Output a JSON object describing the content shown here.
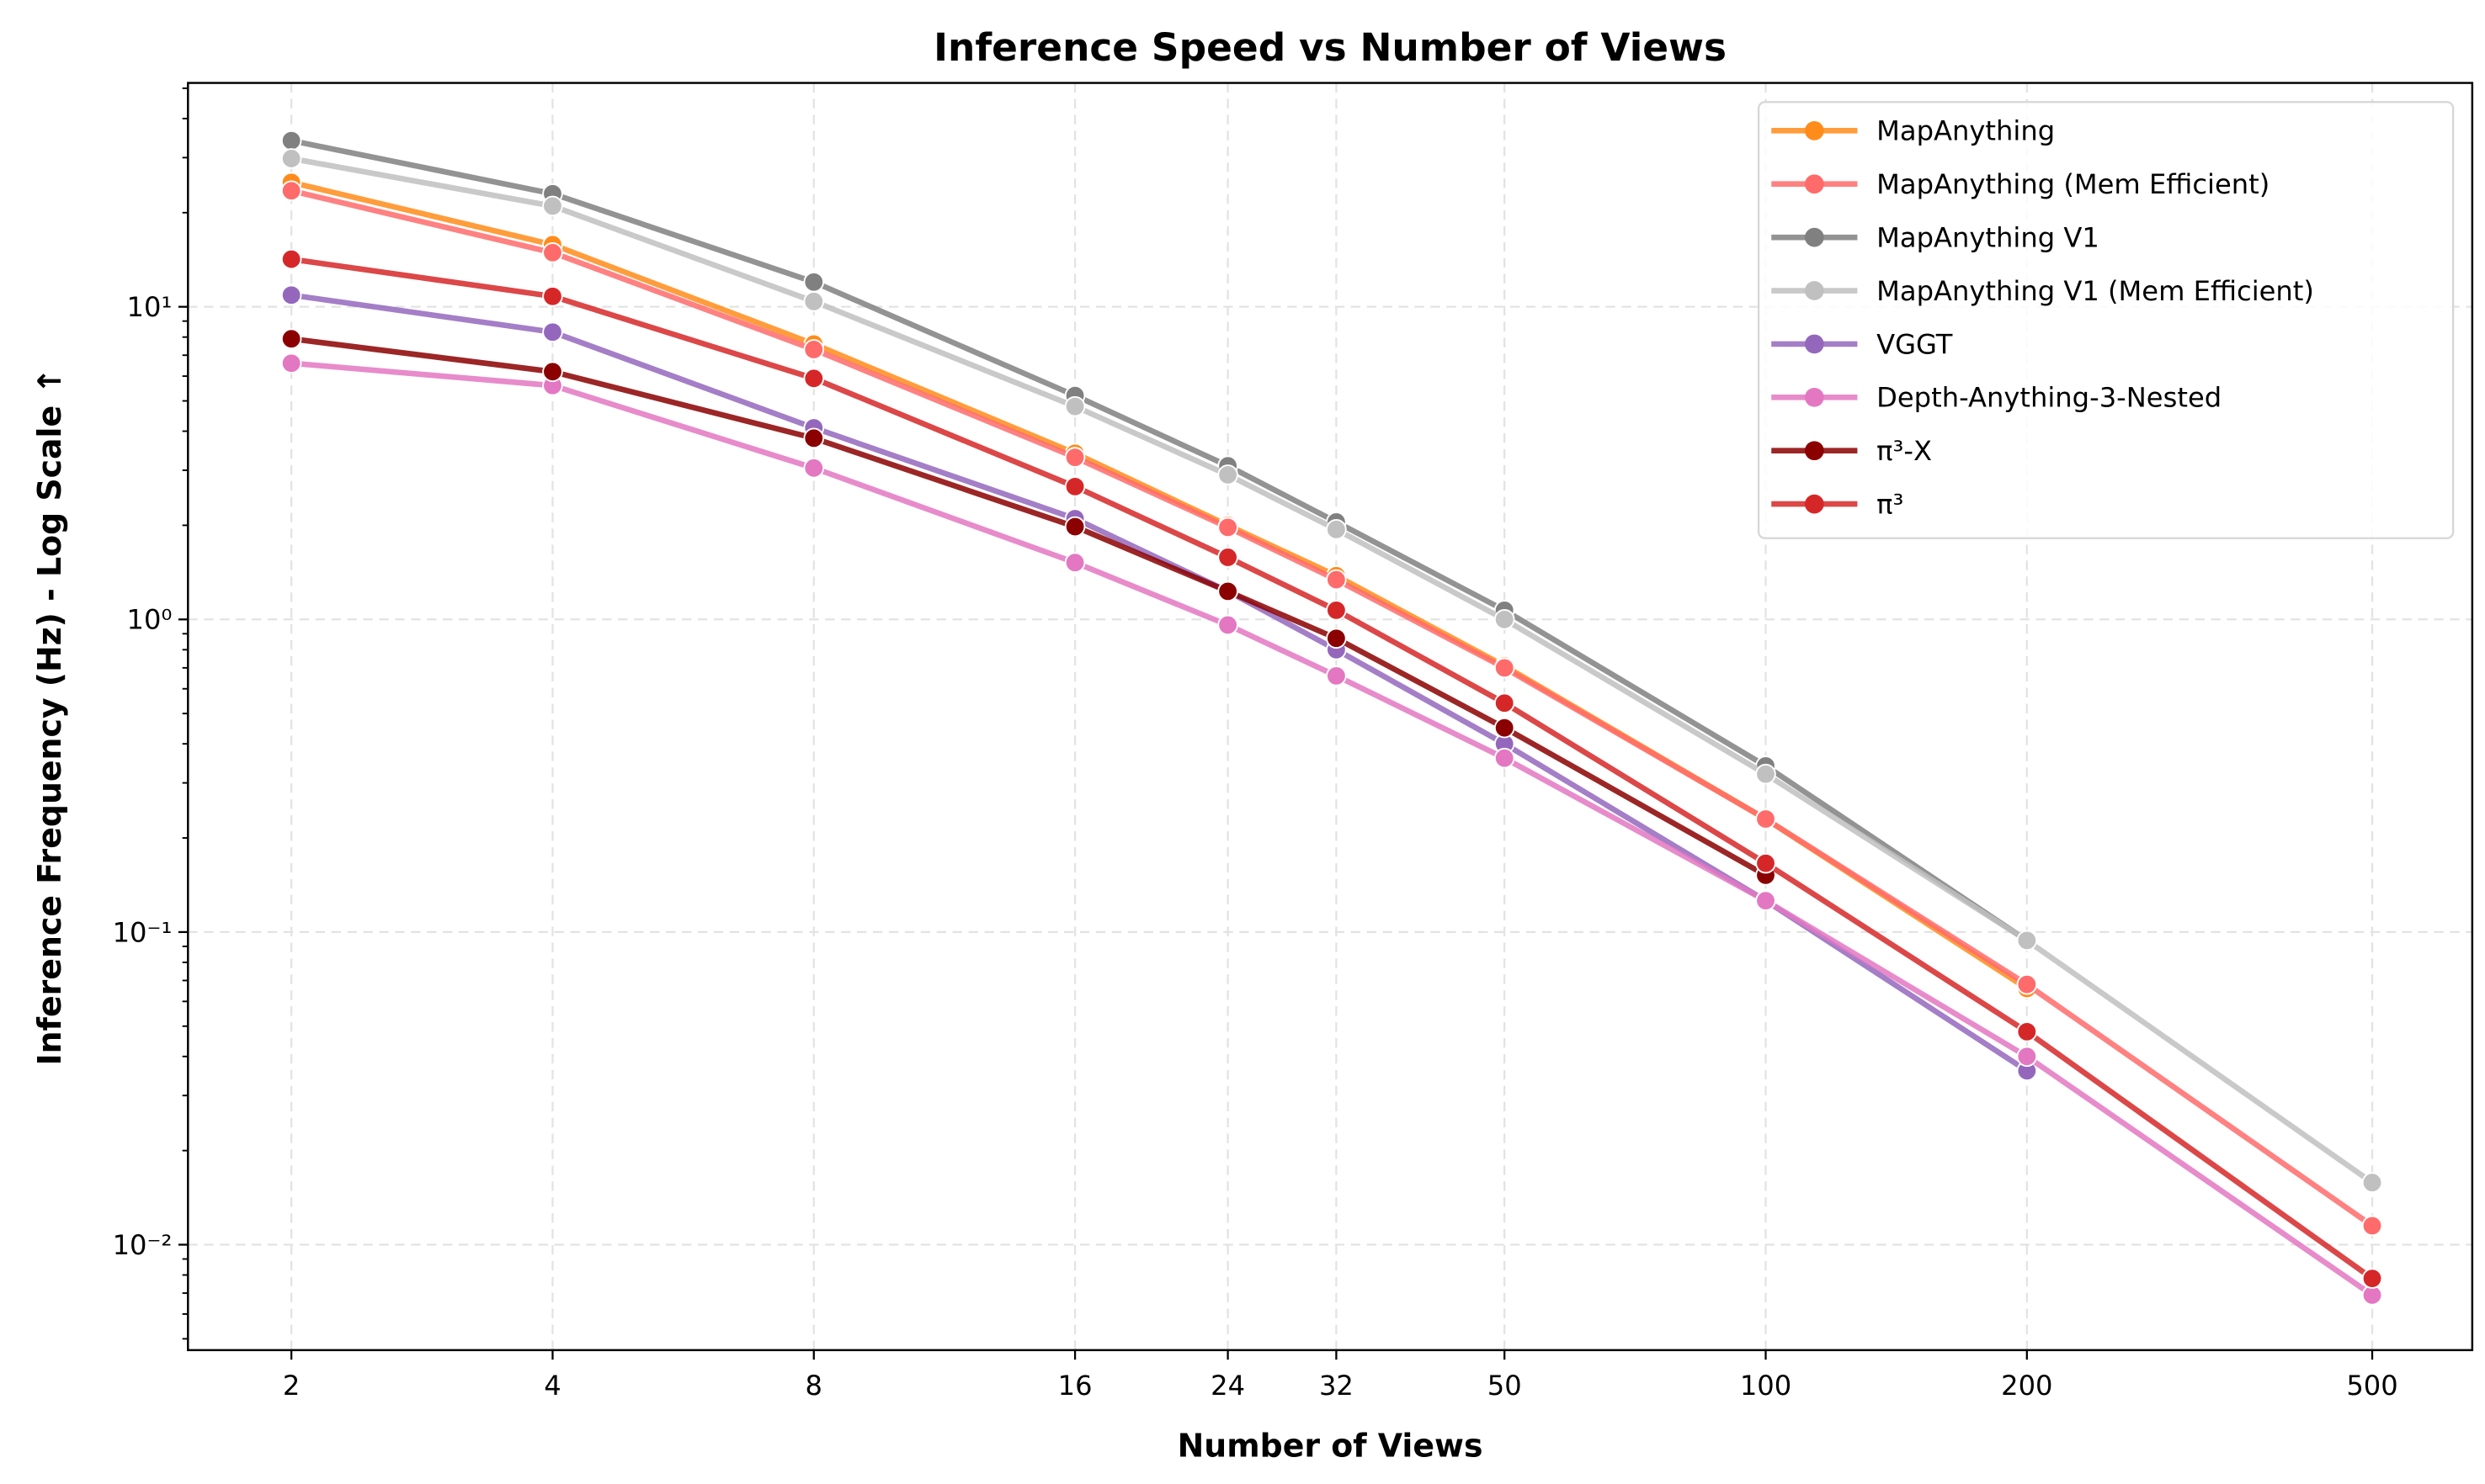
{
  "chart_data": {
    "type": "line",
    "title": "Inference Speed vs Number of Views",
    "xlabel": "Number of Views",
    "ylabel": "Inference Frequency (Hz) - Log Scale ↑",
    "x_scale": "log",
    "y_scale": "log",
    "xlim": [
      1.52,
      652
    ],
    "ylim": [
      0.0046,
      52
    ],
    "grid": true,
    "legend_position": "top-right",
    "x_ticks": [
      2,
      4,
      8,
      16,
      24,
      32,
      50,
      100,
      200,
      500
    ],
    "x_tick_labels": [
      "2",
      "4",
      "8",
      "16",
      "24",
      "32",
      "50",
      "100",
      "200",
      "500"
    ],
    "y_ticks": [
      0.01,
      0.1,
      1,
      10
    ],
    "y_tick_labels": [
      "10⁻²",
      "10⁻¹",
      "10⁰",
      "10¹"
    ],
    "series": [
      {
        "name": "MapAnything",
        "color": "#ff8c1a",
        "x": [
          2,
          4,
          8,
          16,
          24,
          32,
          50,
          100,
          200
        ],
        "y": [
          25,
          15.8,
          7.6,
          3.4,
          2.0,
          1.38,
          0.71,
          0.23,
          0.066
        ]
      },
      {
        "name": "MapAnything (Mem Efficient)",
        "color": "#ff6b6b",
        "x": [
          2,
          4,
          8,
          16,
          24,
          32,
          50,
          100,
          200,
          500
        ],
        "y": [
          23.5,
          14.9,
          7.3,
          3.3,
          1.97,
          1.34,
          0.7,
          0.23,
          0.068,
          0.0115
        ]
      },
      {
        "name": "MapAnything V1",
        "color": "#808080",
        "x": [
          2,
          4,
          8,
          16,
          24,
          32,
          50,
          100,
          200
        ],
        "y": [
          34,
          23,
          12,
          5.2,
          3.1,
          2.05,
          1.07,
          0.34,
          0.094
        ]
      },
      {
        "name": "MapAnything V1 (Mem Efficient)",
        "color": "#c0c0c0",
        "x": [
          2,
          4,
          8,
          16,
          24,
          32,
          50,
          100,
          200,
          500
        ],
        "y": [
          29.8,
          21,
          10.4,
          4.8,
          2.9,
          1.94,
          1.0,
          0.32,
          0.094,
          0.0158
        ]
      },
      {
        "name": "VGGT",
        "color": "#9467bd",
        "x": [
          2,
          4,
          8,
          16,
          24,
          32,
          50,
          100,
          200
        ],
        "y": [
          10.9,
          8.3,
          4.1,
          2.1,
          1.23,
          0.8,
          0.4,
          0.126,
          0.036
        ]
      },
      {
        "name": "Depth-Anything-3-Nested",
        "color": "#e377c2",
        "x": [
          2,
          4,
          8,
          16,
          24,
          32,
          50,
          100,
          200,
          500
        ],
        "y": [
          6.6,
          5.6,
          3.05,
          1.52,
          0.96,
          0.66,
          0.36,
          0.126,
          0.04,
          0.0069
        ]
      },
      {
        "name": "π³-X",
        "color": "#8b0000",
        "x": [
          2,
          4,
          8,
          16,
          24,
          32,
          50,
          100
        ],
        "y": [
          7.9,
          6.2,
          3.8,
          1.98,
          1.23,
          0.87,
          0.45,
          0.152
        ]
      },
      {
        "name": "π³",
        "color": "#d62728",
        "x": [
          2,
          4,
          8,
          16,
          24,
          32,
          50,
          100,
          200,
          500
        ],
        "y": [
          14.2,
          10.8,
          5.9,
          2.66,
          1.58,
          1.07,
          0.54,
          0.166,
          0.048,
          0.0078
        ]
      }
    ]
  }
}
